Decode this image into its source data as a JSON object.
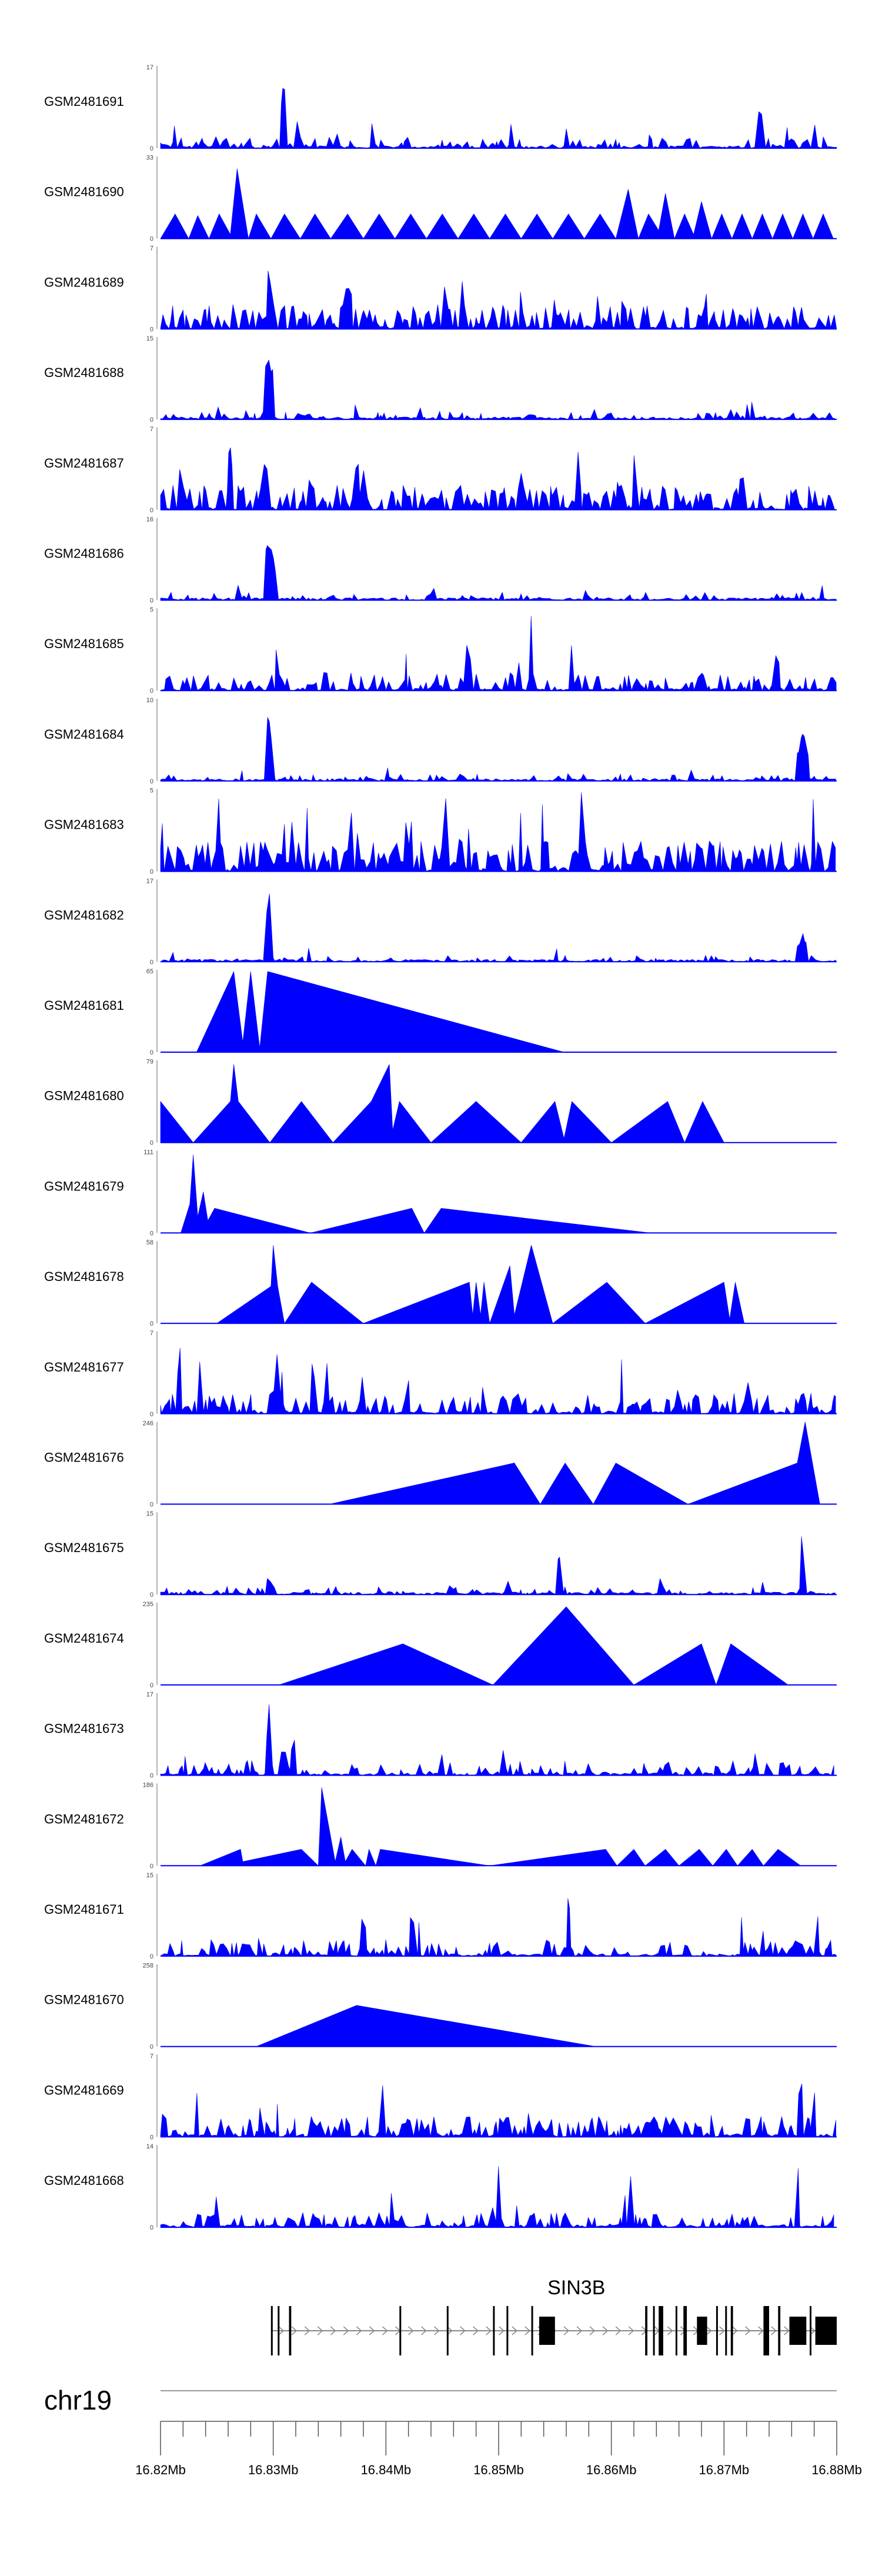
{
  "chart_data": {
    "type": "area",
    "title": "",
    "x_range_bp": [
      16820000,
      16880000
    ],
    "chromosome": "chr19",
    "gene": "SIN3B",
    "axis_ticks": [
      {
        "pos": 16820000,
        "label": "16.82Mb"
      },
      {
        "pos": 16830000,
        "label": "16.83Mb"
      },
      {
        "pos": 16840000,
        "label": "16.84Mb"
      },
      {
        "pos": 16850000,
        "label": "16.85Mb"
      },
      {
        "pos": 16860000,
        "label": "16.86Mb"
      },
      {
        "pos": 16870000,
        "label": "16.87Mb"
      },
      {
        "pos": 16880000,
        "label": "16.88Mb"
      }
    ],
    "colors": {
      "signal": "#0000ff",
      "gene": "#000000",
      "axis": "#555555"
    },
    "tracks": [
      {
        "name": "GSM2481691",
        "ymax": 17,
        "kind": "dense",
        "density": 0.34,
        "base": 0.14,
        "peaks": [
          [
            16830900,
            1.0,
            200
          ],
          [
            16873200,
            0.65,
            250
          ]
        ]
      },
      {
        "name": "GSM2481690",
        "ymax": 33,
        "kind": "sparse",
        "points": [
          [
            16820000,
            0
          ],
          [
            16821300,
            0.3
          ],
          [
            16822500,
            0
          ],
          [
            16823300,
            0.28
          ],
          [
            16824300,
            0
          ],
          [
            16825200,
            0.3
          ],
          [
            16826200,
            0.05
          ],
          [
            16826800,
            0.85
          ],
          [
            16827800,
            0
          ],
          [
            16828500,
            0.3
          ],
          [
            16829800,
            0
          ],
          [
            16831000,
            0.3
          ],
          [
            16832400,
            0
          ],
          [
            16833700,
            0.3
          ],
          [
            16835100,
            0
          ],
          [
            16836600,
            0.3
          ],
          [
            16838000,
            0
          ],
          [
            16839400,
            0.3
          ],
          [
            16840800,
            0
          ],
          [
            16842200,
            0.3
          ],
          [
            16843600,
            0
          ],
          [
            16845000,
            0.3
          ],
          [
            16846400,
            0
          ],
          [
            16847800,
            0.3
          ],
          [
            16849200,
            0
          ],
          [
            16850600,
            0.3
          ],
          [
            16852000,
            0
          ],
          [
            16853400,
            0.3
          ],
          [
            16854800,
            0
          ],
          [
            16856200,
            0.3
          ],
          [
            16857600,
            0
          ],
          [
            16859000,
            0.3
          ],
          [
            16860400,
            0
          ],
          [
            16861500,
            0.6
          ],
          [
            16862400,
            0
          ],
          [
            16863300,
            0.3
          ],
          [
            16864200,
            0.1
          ],
          [
            16864800,
            0.55
          ],
          [
            16865600,
            0
          ],
          [
            16866500,
            0.3
          ],
          [
            16867300,
            0.05
          ],
          [
            16868000,
            0.45
          ],
          [
            16868900,
            0
          ],
          [
            16869800,
            0.3
          ],
          [
            16870700,
            0
          ],
          [
            16871600,
            0.3
          ],
          [
            16872500,
            0
          ],
          [
            16873400,
            0.3
          ],
          [
            16874300,
            0
          ],
          [
            16875200,
            0.3
          ],
          [
            16876100,
            0
          ],
          [
            16877000,
            0.3
          ],
          [
            16877900,
            0
          ],
          [
            16878800,
            0.3
          ],
          [
            16879700,
            0
          ]
        ]
      },
      {
        "name": "GSM2481689",
        "ymax": 7,
        "kind": "dense",
        "density": 0.7,
        "base": 0.3,
        "peaks": [
          [
            16829600,
            1.0,
            150
          ],
          [
            16836800,
            0.75,
            200
          ],
          [
            16845200,
            0.6,
            200
          ]
        ]
      },
      {
        "name": "GSM2481688",
        "ymax": 15,
        "kind": "dense",
        "density": 0.28,
        "base": 0.1,
        "peaks": [
          [
            16829500,
            0.95,
            300
          ],
          [
            16829900,
            0.8,
            250
          ]
        ]
      },
      {
        "name": "GSM2481687",
        "ymax": 7,
        "kind": "dense",
        "density": 0.7,
        "base": 0.3,
        "peaks": [
          [
            16826200,
            0.95,
            150
          ],
          [
            16829300,
            0.85,
            200
          ],
          [
            16836400,
            0.95,
            150
          ]
        ]
      },
      {
        "name": "GSM2481686",
        "ymax": 16,
        "kind": "dense",
        "density": 0.24,
        "base": 0.1,
        "peaks": [
          [
            16829600,
            1.0,
            300
          ],
          [
            16830000,
            0.6,
            250
          ]
        ]
      },
      {
        "name": "GSM2481685",
        "ymax": 5,
        "kind": "dense",
        "density": 0.55,
        "base": 0.22,
        "peaks": [
          [
            16852900,
            1.0,
            150
          ],
          [
            16847300,
            0.75,
            250
          ],
          [
            16874700,
            0.55,
            300
          ]
        ]
      },
      {
        "name": "GSM2481684",
        "ymax": 10,
        "kind": "dense",
        "density": 0.22,
        "base": 0.09,
        "peaks": [
          [
            16829600,
            0.95,
            300
          ],
          [
            16877000,
            0.65,
            500
          ]
        ]
      },
      {
        "name": "GSM2481683",
        "ymax": 5,
        "kind": "dense",
        "density": 0.8,
        "base": 0.38,
        "peaks": [
          [
            16837600,
            0.95,
            150
          ],
          [
            16841800,
            0.8,
            200
          ]
        ]
      },
      {
        "name": "GSM2481682",
        "ymax": 17,
        "kind": "dense",
        "density": 0.22,
        "base": 0.08,
        "peaks": [
          [
            16829600,
            0.95,
            300
          ],
          [
            16877000,
            0.35,
            500
          ]
        ]
      },
      {
        "name": "GSM2481681",
        "ymax": 65,
        "kind": "sparse",
        "points": [
          [
            16823200,
            0
          ],
          [
            16826500,
            0.98
          ],
          [
            16827300,
            0.12
          ],
          [
            16828000,
            0.98
          ],
          [
            16828800,
            0.05
          ],
          [
            16829500,
            0.98
          ],
          [
            16855800,
            0
          ]
        ]
      },
      {
        "name": "GSM2481680",
        "ymax": 79,
        "kind": "sparse",
        "points": [
          [
            16820000,
            0.5
          ],
          [
            16822900,
            0
          ],
          [
            16826200,
            0.5
          ],
          [
            16826500,
            0.95
          ],
          [
            16826900,
            0.5
          ],
          [
            16829700,
            0
          ],
          [
            16832500,
            0.5
          ],
          [
            16835300,
            0
          ],
          [
            16838700,
            0.5
          ],
          [
            16840300,
            0.95
          ],
          [
            16840600,
            0.15
          ],
          [
            16841200,
            0.5
          ],
          [
            16844000,
            0
          ],
          [
            16848000,
            0.5
          ],
          [
            16852000,
            0
          ],
          [
            16855000,
            0.5
          ],
          [
            16855800,
            0.05
          ],
          [
            16856500,
            0.5
          ],
          [
            16860000,
            0
          ],
          [
            16865000,
            0.5
          ],
          [
            16866500,
            0
          ],
          [
            16868100,
            0.5
          ],
          [
            16870000,
            0
          ]
        ]
      },
      {
        "name": "GSM2481679",
        "ymax": 111,
        "kind": "sparse",
        "points": [
          [
            16821800,
            0
          ],
          [
            16822600,
            0.35
          ],
          [
            16822900,
            0.95
          ],
          [
            16823300,
            0.2
          ],
          [
            16823800,
            0.5
          ],
          [
            16824200,
            0.15
          ],
          [
            16824800,
            0.3
          ],
          [
            16833300,
            0
          ],
          [
            16842300,
            0.3
          ],
          [
            16843400,
            0
          ],
          [
            16844900,
            0.3
          ],
          [
            16863500,
            0
          ]
        ]
      },
      {
        "name": "GSM2481678",
        "ymax": 58,
        "kind": "sparse",
        "points": [
          [
            16825000,
            0
          ],
          [
            16829800,
            0.45
          ],
          [
            16830000,
            0.95
          ],
          [
            16830400,
            0.45
          ],
          [
            16831000,
            0
          ],
          [
            16833400,
            0.5
          ],
          [
            16838000,
            0
          ],
          [
            16847400,
            0.5
          ],
          [
            16847700,
            0.1
          ],
          [
            16848000,
            0.5
          ],
          [
            16848400,
            0.1
          ],
          [
            16848700,
            0.5
          ],
          [
            16849200,
            0
          ],
          [
            16851000,
            0.7
          ],
          [
            16851400,
            0.1
          ],
          [
            16852900,
            0.95
          ],
          [
            16854800,
            0
          ],
          [
            16859600,
            0.5
          ],
          [
            16863000,
            0
          ],
          [
            16870000,
            0.5
          ],
          [
            16870500,
            0.05
          ],
          [
            16871000,
            0.5
          ],
          [
            16871800,
            0
          ]
        ]
      },
      {
        "name": "GSM2481677",
        "ymax": 7,
        "kind": "dense",
        "density": 0.55,
        "base": 0.25,
        "peaks": [
          [
            16821700,
            0.9,
            200
          ],
          [
            16830300,
            0.85,
            200
          ],
          [
            16823500,
            0.7,
            200
          ]
        ]
      },
      {
        "name": "GSM2481676",
        "ymax": 246,
        "kind": "sparse",
        "points": [
          [
            16835000,
            0
          ],
          [
            16851400,
            0.5
          ],
          [
            16853700,
            0
          ],
          [
            16855900,
            0.5
          ],
          [
            16858400,
            0
          ],
          [
            16860400,
            0.5
          ],
          [
            16866800,
            0
          ],
          [
            16876500,
            0.5
          ],
          [
            16877200,
            1.0
          ],
          [
            16878500,
            0
          ]
        ]
      },
      {
        "name": "GSM2481675",
        "ymax": 15,
        "kind": "dense",
        "density": 0.22,
        "base": 0.1,
        "peaks": [
          [
            16876900,
            0.95,
            150
          ],
          [
            16855400,
            0.55,
            300
          ],
          [
            16829600,
            0.25,
            300
          ]
        ]
      },
      {
        "name": "GSM2481674",
        "ymax": 235,
        "kind": "sparse",
        "points": [
          [
            16830500,
            0
          ],
          [
            16841500,
            0.5
          ],
          [
            16849500,
            0
          ],
          [
            16856000,
            0.95
          ],
          [
            16862000,
            0
          ],
          [
            16868000,
            0.5
          ],
          [
            16869300,
            0
          ],
          [
            16870600,
            0.5
          ],
          [
            16875700,
            0
          ]
        ]
      },
      {
        "name": "GSM2481673",
        "ymax": 17,
        "kind": "dense",
        "density": 0.42,
        "base": 0.18,
        "peaks": [
          [
            16829600,
            0.95,
            200
          ],
          [
            16831800,
            0.6,
            200
          ],
          [
            16830900,
            0.5,
            200
          ]
        ]
      },
      {
        "name": "GSM2481672",
        "ymax": 186,
        "kind": "sparse",
        "points": [
          [
            16823500,
            0
          ],
          [
            16827100,
            0.2
          ],
          [
            16827300,
            0.05
          ],
          [
            16832500,
            0.2
          ],
          [
            16834000,
            0
          ],
          [
            16834300,
            0.95
          ],
          [
            16835500,
            0.05
          ],
          [
            16836000,
            0.35
          ],
          [
            16836400,
            0.05
          ],
          [
            16837000,
            0.2
          ],
          [
            16838200,
            0
          ],
          [
            16838500,
            0.2
          ],
          [
            16839100,
            0
          ],
          [
            16839500,
            0.2
          ],
          [
            16849200,
            0
          ],
          [
            16859500,
            0.2
          ],
          [
            16860500,
            0
          ],
          [
            16862000,
            0.2
          ],
          [
            16863000,
            0
          ],
          [
            16864800,
            0.2
          ],
          [
            16866000,
            0
          ],
          [
            16867800,
            0.2
          ],
          [
            16869000,
            0
          ],
          [
            16870200,
            0.2
          ],
          [
            16871200,
            0
          ],
          [
            16872500,
            0.2
          ],
          [
            16873500,
            0
          ],
          [
            16874800,
            0.2
          ],
          [
            16876800,
            0
          ]
        ]
      },
      {
        "name": "GSM2481671",
        "ymax": 15,
        "kind": "dense",
        "density": 0.48,
        "base": 0.2,
        "peaks": [
          [
            16856200,
            1.0,
            150
          ],
          [
            16842300,
            0.75,
            200
          ],
          [
            16838000,
            0.7,
            200
          ]
        ]
      },
      {
        "name": "GSM2481670",
        "ymax": 258,
        "kind": "sparse",
        "points": [
          [
            16828500,
            0
          ],
          [
            16837400,
            0.5
          ],
          [
            16858600,
            0
          ]
        ]
      },
      {
        "name": "GSM2481669",
        "ymax": 7,
        "kind": "dense",
        "density": 0.55,
        "base": 0.25,
        "peaks": [
          [
            16839800,
            1.0,
            150
          ],
          [
            16876800,
            0.95,
            200
          ],
          [
            16877900,
            0.8,
            200
          ]
        ]
      },
      {
        "name": "GSM2481668",
        "ymax": 14,
        "kind": "dense",
        "density": 0.42,
        "base": 0.18,
        "peaks": [
          [
            16876500,
            0.95,
            200
          ],
          [
            16850000,
            0.8,
            200
          ],
          [
            16861700,
            0.75,
            200
          ]
        ]
      }
    ],
    "transcript": {
      "start": 16829800,
      "end": 16880000,
      "exons_bp": [
        [
          16829800,
          16829900
        ],
        [
          16830400,
          16830500
        ],
        [
          16831400,
          16831600
        ],
        [
          16841200,
          16841300
        ],
        [
          16845400,
          16845500
        ],
        [
          16849500,
          16849600
        ],
        [
          16850700,
          16850800
        ],
        [
          16852900,
          16853000
        ],
        [
          16853600,
          16855000
        ],
        [
          16863000,
          16863200
        ],
        [
          16863700,
          16863800
        ],
        [
          16864200,
          16864600
        ],
        [
          16865700,
          16865800
        ],
        [
          16866400,
          16866700
        ],
        [
          16867600,
          16868500
        ],
        [
          16869300,
          16869400
        ],
        [
          16870100,
          16870200
        ],
        [
          16870600,
          16870800
        ],
        [
          16873500,
          16874000
        ],
        [
          16874800,
          16875000
        ],
        [
          16875800,
          16877300
        ],
        [
          16877600,
          16877700
        ],
        [
          16878100,
          16880000
        ]
      ]
    }
  }
}
